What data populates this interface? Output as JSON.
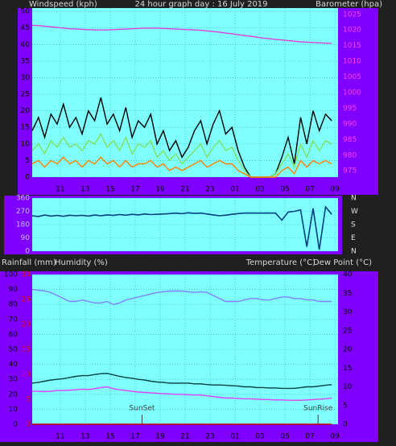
{
  "chart_data": [
    {
      "type": "line",
      "title": "24 hour graph day : 16 July 2019",
      "y_label": "Windspeed (kph)",
      "y2_label": "Barometer (hpa)",
      "x": [
        0,
        0.5,
        1,
        1.5,
        2,
        2.5,
        3,
        3.5,
        4,
        4.5,
        5,
        5.5,
        6,
        6.5,
        7,
        7.5,
        8,
        8.5,
        9,
        9.5,
        10,
        10.5,
        11,
        11.5,
        12,
        12.5,
        13,
        13.5,
        14,
        14.5,
        15,
        15.5,
        16,
        16.5,
        17,
        17.5,
        18,
        18.5,
        19,
        19.5,
        20,
        20.5,
        21,
        21.5,
        22,
        22.5,
        23,
        23.5,
        24
      ],
      "xlim": [
        0,
        24.5
      ],
      "xticks": [
        {
          "value": 2.25,
          "label": "11"
        },
        {
          "value": 4.25,
          "label": "13"
        },
        {
          "value": 6.25,
          "label": "15"
        },
        {
          "value": 8.25,
          "label": "17"
        },
        {
          "value": 10.25,
          "label": "19"
        },
        {
          "value": 12.25,
          "label": "21"
        },
        {
          "value": 14.25,
          "label": "23"
        },
        {
          "value": 16.25,
          "label": "01"
        },
        {
          "value": 18.25,
          "label": "03"
        },
        {
          "value": 20.25,
          "label": "05"
        },
        {
          "value": 22.25,
          "label": "07"
        },
        {
          "value": 24.25,
          "label": "09"
        }
      ],
      "ylim": [
        0,
        51
      ],
      "yticks": [
        0,
        5,
        10,
        15,
        20,
        25,
        30,
        35,
        40,
        45,
        50
      ],
      "y2lim": [
        973,
        1027
      ],
      "y2ticks": [
        975,
        980,
        985,
        990,
        995,
        1000,
        1005,
        1010,
        1015,
        1020,
        1025
      ],
      "grid": true,
      "series": [
        {
          "color": "#000000",
          "values": [
            14,
            18,
            12,
            19,
            16,
            22,
            15,
            18,
            13,
            20,
            17,
            24,
            16,
            19,
            14,
            21,
            12,
            17,
            15,
            19,
            10,
            14,
            8,
            11,
            6,
            9,
            14,
            17,
            10,
            16,
            20,
            13,
            15,
            8,
            3,
            0,
            0,
            0,
            0,
            1,
            6,
            12,
            4,
            18,
            10,
            20,
            14,
            19,
            17
          ]
        },
        {
          "color": "#80e060",
          "values": [
            8,
            10,
            7,
            11,
            9,
            12,
            9,
            10,
            8,
            11,
            10,
            13,
            9,
            11,
            8,
            12,
            7,
            10,
            9,
            11,
            6,
            8,
            5,
            7,
            4,
            6,
            8,
            10,
            6,
            9,
            11,
            8,
            9,
            5,
            2,
            0,
            0,
            0,
            0,
            1,
            4,
            7,
            3,
            10,
            6,
            11,
            8,
            11,
            10
          ]
        },
        {
          "color": "#ff8000",
          "values": [
            4,
            5,
            3,
            5,
            4,
            6,
            4,
            5,
            3,
            5,
            4,
            6,
            4,
            5,
            3,
            5,
            3,
            4,
            4,
            5,
            3,
            4,
            2,
            3,
            2,
            3,
            4,
            5,
            3,
            4,
            5,
            4,
            4,
            2,
            1,
            0,
            0,
            0,
            0,
            0,
            2,
            3,
            1,
            5,
            3,
            5,
            4,
            5,
            4
          ]
        },
        {
          "color": "#e040e0",
          "axis": "y2",
          "values": [
            1021.5,
            1021.4,
            1021.2,
            1021,
            1020.8,
            1020.6,
            1020.4,
            1020.3,
            1020.2,
            1020.1,
            1020,
            1020,
            1020,
            1020.1,
            1020.2,
            1020.3,
            1020.4,
            1020.5,
            1020.6,
            1020.6,
            1020.6,
            1020.5,
            1020.4,
            1020.3,
            1020.2,
            1020.1,
            1020,
            1019.9,
            1019.7,
            1019.5,
            1019.3,
            1019,
            1018.8,
            1018.5,
            1018.2,
            1018,
            1017.7,
            1017.4,
            1017.2,
            1017,
            1016.8,
            1016.6,
            1016.4,
            1016.2,
            1016.1,
            1016,
            1015.9,
            1015.8,
            1015.7
          ]
        }
      ]
    },
    {
      "type": "line",
      "ylim": [
        0,
        360
      ],
      "yticks": [
        0,
        90,
        180,
        270,
        360
      ],
      "y2lim": [
        0,
        360
      ],
      "y2ticks": [
        {
          "value": 0,
          "label": "N"
        },
        {
          "value": 90,
          "label": "E"
        },
        {
          "value": 180,
          "label": "S"
        },
        {
          "value": 270,
          "label": "W"
        },
        {
          "value": 360,
          "label": "N"
        }
      ],
      "grid": true,
      "series": [
        {
          "color": "#004080",
          "values": [
            240,
            235,
            245,
            238,
            242,
            236,
            244,
            240,
            243,
            238,
            245,
            240,
            246,
            242,
            248,
            244,
            250,
            246,
            252,
            248,
            250,
            252,
            255,
            258,
            254,
            260,
            256,
            258,
            252,
            246,
            240,
            244,
            250,
            255,
            258,
            258,
            258,
            258,
            258,
            258,
            210,
            265,
            270,
            280,
            30,
            290,
            10,
            300,
            250
          ]
        }
      ]
    },
    {
      "type": "line",
      "y_label": "Humidity (%)",
      "y2_label": "Temperature (°C)",
      "y2_label_b": "Dew Point (°C)",
      "y3_label": "Rainfall (mm)",
      "ylim": [
        0,
        100
      ],
      "yticks": [
        0,
        10,
        20,
        30,
        40,
        50,
        60,
        70,
        80,
        90,
        100
      ],
      "y2lim": [
        0,
        40
      ],
      "y2ticks": [
        0,
        5,
        10,
        15,
        20,
        25,
        30,
        35,
        40
      ],
      "y3lim": [
        0,
        30
      ],
      "y3ticks": [
        0,
        5,
        10,
        15,
        20,
        25,
        30
      ],
      "grid": true,
      "series": [
        {
          "color": "#8080ff",
          "values": [
            90,
            89.5,
            89,
            88,
            86,
            84,
            82,
            82,
            83,
            82,
            81,
            81,
            82,
            80,
            81,
            83,
            84,
            85,
            86,
            87,
            88,
            88.5,
            89,
            89,
            89,
            88.5,
            88,
            88.5,
            88,
            86,
            84,
            82,
            82,
            82,
            83,
            84,
            84,
            83,
            83,
            84,
            85,
            85,
            84,
            84,
            83,
            83,
            82,
            82,
            82
          ]
        },
        {
          "color": "#004040",
          "axis": "y2",
          "values": [
            11,
            11.2,
            11.5,
            11.8,
            12,
            12.2,
            12.5,
            12.8,
            13,
            13,
            13.3,
            13.5,
            13.6,
            13.2,
            12.8,
            12.5,
            12.3,
            12,
            11.8,
            11.5,
            11.3,
            11.2,
            11,
            11,
            11,
            11,
            10.8,
            10.8,
            10.6,
            10.5,
            10.5,
            10.4,
            10.3,
            10.2,
            10,
            10,
            9.8,
            9.8,
            9.7,
            9.7,
            9.6,
            9.6,
            9.6,
            9.8,
            10,
            10,
            10.2,
            10.4,
            10.6
          ]
        },
        {
          "color": "#e040ff",
          "axis": "y2",
          "values": [
            8.8,
            8.8,
            8.7,
            8.8,
            9,
            9,
            9.1,
            9.2,
            9.4,
            9.3,
            9.5,
            9.8,
            10,
            9.5,
            9.2,
            9,
            8.8,
            8.6,
            8.5,
            8.4,
            8.3,
            8.2,
            8.1,
            8,
            8,
            7.9,
            7.8,
            7.8,
            7.6,
            7.4,
            7.2,
            7,
            7,
            6.9,
            6.8,
            6.8,
            6.7,
            6.6,
            6.6,
            6.5,
            6.5,
            6.4,
            6.4,
            6.4,
            6.5,
            6.6,
            6.7,
            6.8,
            7
          ]
        },
        {
          "color": "#c00000",
          "axis": "y3",
          "values": [
            0,
            0,
            0,
            0,
            0,
            0,
            0,
            0,
            0,
            0,
            0,
            0,
            0,
            0,
            0,
            0,
            0,
            0,
            0,
            0,
            0,
            0,
            0,
            0,
            0,
            0,
            0,
            0,
            0,
            0,
            0,
            0,
            0,
            0,
            0,
            0,
            0,
            0,
            0,
            0,
            0,
            0,
            0,
            0,
            0,
            0,
            0,
            0,
            0
          ]
        }
      ],
      "annotations": [
        {
          "text": "SunSet",
          "x": 8.8
        },
        {
          "text": "SunRise",
          "x": 22.9
        }
      ]
    }
  ]
}
